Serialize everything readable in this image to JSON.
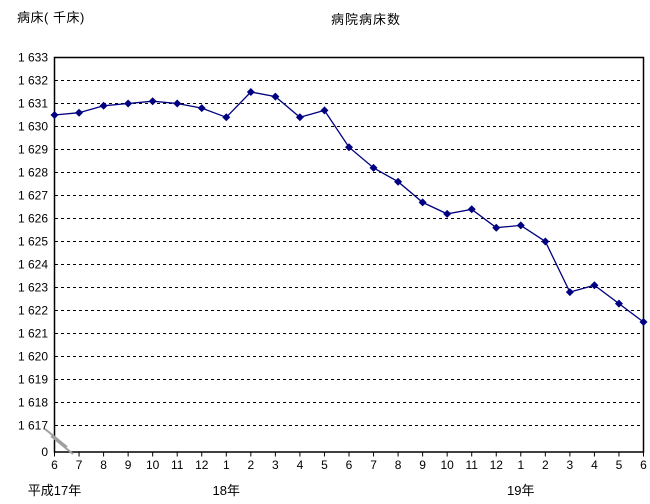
{
  "chart_data": {
    "type": "line",
    "title": "病院病床数",
    "ylabel": "病床( 千床)",
    "x_labels": [
      "6",
      "7",
      "8",
      "9",
      "10",
      "11",
      "12",
      "1",
      "2",
      "3",
      "4",
      "5",
      "6",
      "7",
      "8",
      "9",
      "10",
      "11",
      "12",
      "1",
      "2",
      "3",
      "4",
      "5",
      "6"
    ],
    "year_labels": [
      {
        "label": "平成17年",
        "index": 0
      },
      {
        "label": "18年",
        "index": 7
      },
      {
        "label": "19年",
        "index": 19
      }
    ],
    "values": [
      1630.5,
      1630.6,
      1630.9,
      1631.0,
      1631.1,
      1631.0,
      1630.8,
      1630.4,
      1631.5,
      1631.3,
      1630.4,
      1630.7,
      1629.1,
      1628.2,
      1627.6,
      1626.7,
      1626.2,
      1626.4,
      1625.6,
      1625.7,
      1625.0,
      1622.8,
      1623.1,
      1622.3,
      1621.5
    ],
    "y_axis": {
      "tick_values": [
        1633,
        1632,
        1631,
        1630,
        1629,
        1628,
        1627,
        1626,
        1625,
        1624,
        1623,
        1622,
        1621,
        1620,
        1619,
        1618,
        1617
      ],
      "tick_labels": [
        "1 633",
        "1 632",
        "1 631",
        "1 630",
        "1 629",
        "1 628",
        "1 627",
        "1 626",
        "1 625",
        "1 624",
        "1 623",
        "1 622",
        "1 621",
        "1 620",
        "1 619",
        "1 618",
        "1 617"
      ],
      "zero_label": "0",
      "axis_break": true
    },
    "ylim_display": [
      1617,
      1633
    ],
    "grid": true,
    "legend": false,
    "marker": "diamond",
    "colors": {
      "line": "#000080",
      "grid": "#000000",
      "axis": "#000000",
      "axis_break": "#a0a0a0",
      "text": "#000000",
      "background": "#ffffff"
    }
  }
}
